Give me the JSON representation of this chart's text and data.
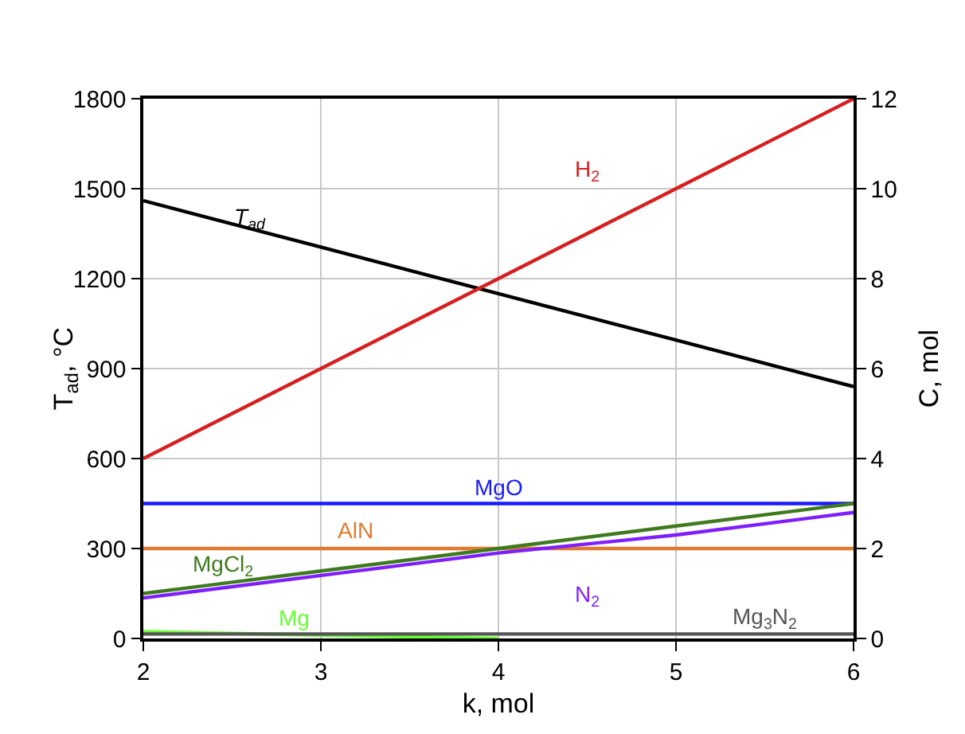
{
  "chart_data": {
    "type": "line",
    "xlabel": "k, mol",
    "ylabel": "T$_{ad}$, °C",
    "y2label": "C, mol",
    "x": [
      2,
      3,
      4,
      5,
      6
    ],
    "xlim": [
      2,
      6
    ],
    "xticks": [
      2,
      3,
      4,
      5,
      6
    ],
    "ylim": [
      0,
      1800
    ],
    "yticks": [
      0,
      300,
      600,
      900,
      1200,
      1500,
      1800
    ],
    "y2lim": [
      0,
      12
    ],
    "y2ticks": [
      0,
      2,
      4,
      6,
      8,
      10,
      12
    ],
    "grid": true,
    "legend": false,
    "marker": "none",
    "line_style": "solid",
    "series": [
      {
        "name": "T$_{ad}$",
        "color": "#000000",
        "values": [
          1460,
          1305,
          1150,
          995,
          840
        ]
      },
      {
        "name": "H$_{2}$",
        "color": "#d62020",
        "axis": "y2",
        "values": [
          4,
          6,
          8,
          10,
          12
        ]
      },
      {
        "name": "MgO",
        "color": "#1a1aff",
        "axis": "y2",
        "values": [
          3,
          3,
          3,
          3,
          3
        ]
      },
      {
        "name": "AlN",
        "color": "#e07b30",
        "axis": "y2",
        "values": [
          2,
          2,
          2,
          2,
          2
        ]
      },
      {
        "name": "MgCl$_{2}$",
        "color": "#3e7a1e",
        "axis": "y2",
        "values": [
          1,
          1.5,
          2,
          2.5,
          3
        ]
      },
      {
        "name": "N$_{2}$",
        "color": "#7f1fff",
        "axis": "y2",
        "values": [
          0.9,
          1.4,
          1.9,
          2.3,
          2.8
        ]
      },
      {
        "name": "Mg",
        "color": "#66ff33",
        "axis": "y2",
        "x": [
          2,
          4
        ],
        "values": [
          0.15,
          0
        ]
      },
      {
        "name": "Mg$_{3}$N$_{2}$",
        "color": "#555555",
        "axis": "y2",
        "values": [
          0.1,
          0.1,
          0.1,
          0.1,
          0.1
        ]
      }
    ]
  }
}
